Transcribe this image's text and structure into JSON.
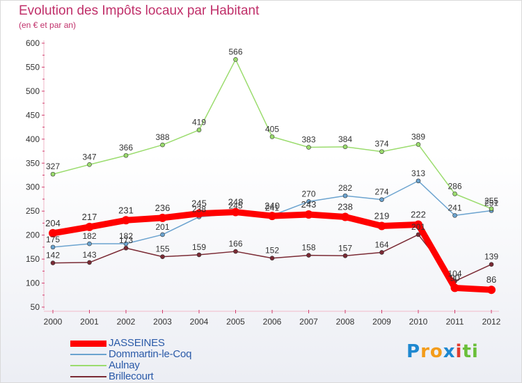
{
  "chart_data": {
    "type": "line",
    "title": "Evolution des Impôts locaux par Habitant",
    "subtitle": "(en € et par an)",
    "xlabel": "",
    "ylabel": "",
    "ylim": [
      50,
      600
    ],
    "yticks": [
      "50",
      "100",
      "150",
      "200",
      "250",
      "300",
      "350",
      "400",
      "450",
      "500",
      "550",
      "600"
    ],
    "categories": [
      "2000",
      "2001",
      "2002",
      "2003",
      "2004",
      "2005",
      "2006",
      "2007",
      "2008",
      "2009",
      "2010",
      "2011",
      "2012"
    ],
    "series": [
      {
        "name": "JASSEINES",
        "color": "#ff0000",
        "values": [
          204,
          217,
          231,
          236,
          245,
          248,
          240,
          243,
          238,
          219,
          222,
          90,
          86
        ],
        "labels": [
          "204",
          "217",
          "231",
          "236",
          "245",
          "248",
          "240",
          "243",
          "238",
          "219",
          "222",
          "90",
          "86"
        ]
      },
      {
        "name": "Dommartin-le-Coq",
        "color": "#6ba3cf",
        "values": [
          175,
          182,
          182,
          201,
          238,
          245,
          241,
          270,
          282,
          274,
          313,
          241,
          251
        ],
        "labels": [
          "175",
          "182",
          "182",
          "201",
          "238",
          "245",
          "241",
          "270",
          "282",
          "274",
          "313",
          "241",
          "251"
        ]
      },
      {
        "name": "Aulnay",
        "color": "#9bdc6e",
        "values": [
          327,
          347,
          366,
          388,
          419,
          566,
          405,
          383,
          384,
          374,
          389,
          286,
          255
        ],
        "labels": [
          "327",
          "347",
          "366",
          "388",
          "419",
          "566",
          "405",
          "383",
          "384",
          "374",
          "389",
          "286",
          "255"
        ]
      },
      {
        "name": "Brillecourt",
        "color": "#7a2a34",
        "values": [
          142,
          143,
          173,
          155,
          159,
          166,
          152,
          158,
          157,
          164,
          201,
          104,
          139
        ],
        "labels": [
          "142",
          "143",
          "173",
          "155",
          "159",
          "166",
          "152",
          "158",
          "157",
          "164",
          "201",
          "104",
          "139"
        ]
      }
    ],
    "legend_position": "bottom-left",
    "grid": false
  },
  "logo": {
    "letters": [
      "P",
      "r",
      "o",
      "x",
      "i",
      "t",
      "i"
    ],
    "colors": [
      "#1e88d0",
      "#f39c1a",
      "#f39c1a",
      "#1e88d0",
      "#e23b2e",
      "#6abf3a",
      "#6abf3a"
    ]
  }
}
